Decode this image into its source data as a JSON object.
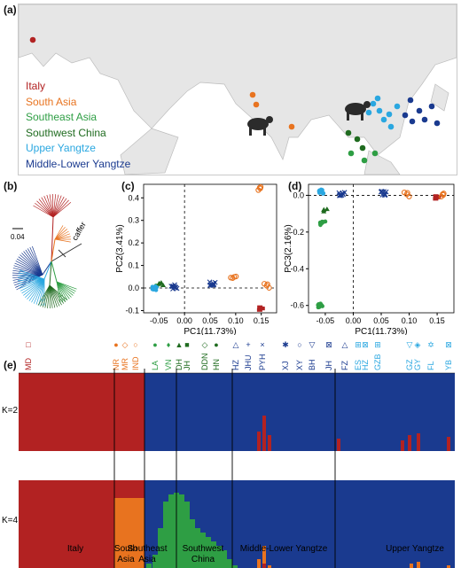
{
  "panels": {
    "a": "(a)",
    "b": "(b)",
    "c": "(c)",
    "d": "(d)",
    "e": "(e)"
  },
  "map": {
    "legend": [
      {
        "label": "Italy",
        "color": "#b22222"
      },
      {
        "label": "South Asia",
        "color": "#e8731f"
      },
      {
        "label": "Southeast Asia",
        "color": "#2e9e44"
      },
      {
        "label": "Southwest China",
        "color": "#1f6b1f"
      },
      {
        "label": "Upper Yangtze",
        "color": "#2aa7e0"
      },
      {
        "label": "Middle-Lower Yangtze",
        "color": "#1a3a8f"
      }
    ]
  },
  "tree": {
    "scale_label": "0.04",
    "outgroup_label": "caffer"
  },
  "colors": {
    "italy": "#b22222",
    "south_asia": "#e8731f",
    "southeast": "#2e9e44",
    "southwest": "#1f6b1f",
    "upper": "#2aa7e0",
    "middle": "#1a3a8f"
  },
  "chart_data": [
    {
      "type": "scatter",
      "panel": "c",
      "xlabel": "PC1(11.73%)",
      "ylabel": "PC2(3.41%)",
      "xlim": [
        -0.08,
        0.18
      ],
      "ylim": [
        -0.11,
        0.46
      ],
      "xticks": [
        "-0.05",
        "0.00",
        "0.05",
        "0.10",
        "0.15"
      ],
      "yticks": [
        "-0.1",
        "0.0",
        "0.1",
        "0.2",
        "0.3",
        "0.4"
      ],
      "clusters": [
        {
          "group": "italy",
          "x": 0.152,
          "y": -0.09
        },
        {
          "group": "south_asia",
          "x": 0.147,
          "y": 0.44
        },
        {
          "group": "south_asia",
          "x": 0.16,
          "y": 0.01
        },
        {
          "group": "south_asia",
          "x": 0.095,
          "y": 0.045
        },
        {
          "group": "southeast",
          "x": -0.055,
          "y": 0.005
        },
        {
          "group": "southwest",
          "x": -0.045,
          "y": 0.015
        },
        {
          "group": "upper",
          "x": -0.06,
          "y": 0.0
        },
        {
          "group": "middle",
          "x": -0.02,
          "y": 0.005
        },
        {
          "group": "middle",
          "x": 0.055,
          "y": 0.02
        }
      ]
    },
    {
      "type": "scatter",
      "panel": "d",
      "xlabel": "PC1(11.73%)",
      "ylabel": "PC3(2.16%)",
      "xlim": [
        -0.08,
        0.18
      ],
      "ylim": [
        -0.64,
        0.06
      ],
      "xticks": [
        "-0.05",
        "0.00",
        "0.05",
        "0.10",
        "0.15"
      ],
      "yticks": [
        "-0.6",
        "-0.4",
        "-0.2",
        "0.0"
      ],
      "clusters": [
        {
          "group": "italy",
          "x": 0.152,
          "y": -0.01
        },
        {
          "group": "south_asia",
          "x": 0.16,
          "y": 0.0
        },
        {
          "group": "south_asia",
          "x": 0.095,
          "y": 0.005
        },
        {
          "group": "southeast",
          "x": -0.055,
          "y": -0.15
        },
        {
          "group": "southeast",
          "x": -0.058,
          "y": -0.6
        },
        {
          "group": "southwest",
          "x": -0.052,
          "y": -0.08
        },
        {
          "group": "upper",
          "x": -0.058,
          "y": 0.02
        },
        {
          "group": "middle",
          "x": -0.02,
          "y": 0.01
        },
        {
          "group": "middle",
          "x": 0.055,
          "y": 0.01
        }
      ]
    }
  ],
  "structure": {
    "k_labels": [
      "K=2",
      "K=4"
    ],
    "pop_labels": [
      {
        "text": "MD",
        "group": "italy",
        "sym": "□"
      },
      {
        "text": "NR",
        "group": "south_asia",
        "sym": "●"
      },
      {
        "text": "MR",
        "group": "south_asia",
        "sym": "◇"
      },
      {
        "text": "IND",
        "group": "south_asia",
        "sym": "○"
      },
      {
        "text": "LA",
        "group": "southeast",
        "sym": "●"
      },
      {
        "text": "VN",
        "group": "southeast",
        "sym": "♦"
      },
      {
        "text": "DH",
        "group": "southwest",
        "sym": "▲"
      },
      {
        "text": "JH",
        "group": "southwest",
        "sym": "■"
      },
      {
        "text": "DDN",
        "group": "southwest",
        "sym": "◇"
      },
      {
        "text": "HN",
        "group": "southwest",
        "sym": "●"
      },
      {
        "text": "HZ",
        "group": "middle",
        "sym": "△"
      },
      {
        "text": "JHU",
        "group": "middle",
        "sym": "+"
      },
      {
        "text": "PYH",
        "group": "middle",
        "sym": "×"
      },
      {
        "text": "XJ",
        "group": "middle",
        "sym": "✱"
      },
      {
        "text": "XY",
        "group": "middle",
        "sym": "○"
      },
      {
        "text": "BH",
        "group": "middle",
        "sym": "▽"
      },
      {
        "text": "JH",
        "group": "middle",
        "sym": "⊠"
      },
      {
        "text": "FZ",
        "group": "middle",
        "sym": "△"
      },
      {
        "text": "ES",
        "group": "upper",
        "sym": "⊞"
      },
      {
        "text": "HZ",
        "group": "upper",
        "sym": "⊠"
      },
      {
        "text": "GZB",
        "group": "upper",
        "sym": "⊞"
      },
      {
        "text": "GZ",
        "group": "upper",
        "sym": "▽"
      },
      {
        "text": "GY",
        "group": "upper",
        "sym": "◈"
      },
      {
        "text": "FL",
        "group": "upper",
        "sym": "✡"
      },
      {
        "text": "YB",
        "group": "upper",
        "sym": "⊠"
      }
    ],
    "region_labels": [
      "Italy",
      "South\nAsia",
      "Southeast\nAsia",
      "Southwest\nChina",
      "Middle-Lower Yangtze",
      "Upper Yangtze"
    ]
  }
}
